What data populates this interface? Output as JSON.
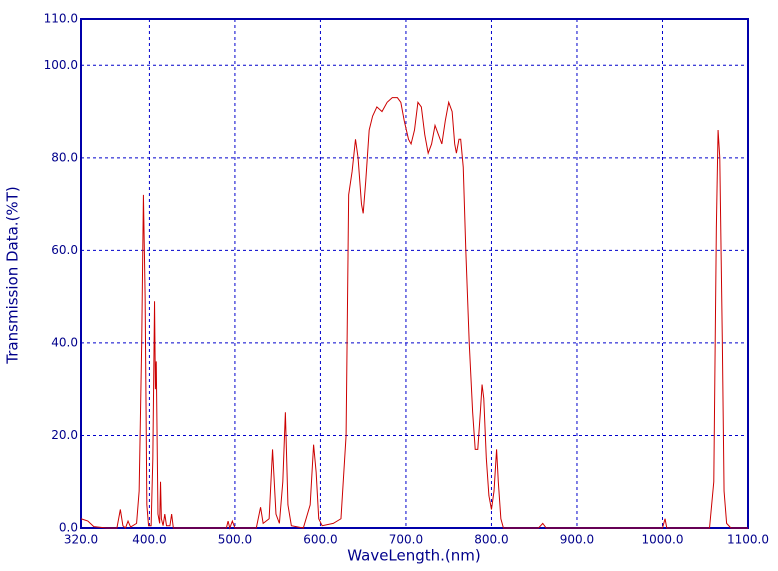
{
  "chart_data": {
    "type": "line",
    "xlabel": "WaveLength.(nm)",
    "ylabel": "Transmission Data.(%T)",
    "xlim": [
      320,
      1100
    ],
    "ylim": [
      0,
      110
    ],
    "xticks": [
      {
        "value": 320,
        "label": "320.0"
      },
      {
        "value": 400,
        "label": "400.0"
      },
      {
        "value": 500,
        "label": "500.0"
      },
      {
        "value": 600,
        "label": "600.0"
      },
      {
        "value": 700,
        "label": "700.0"
      },
      {
        "value": 800,
        "label": "800.0"
      },
      {
        "value": 900,
        "label": "900.0"
      },
      {
        "value": 1000,
        "label": "1000.0"
      },
      {
        "value": 1100,
        "label": "1100.0"
      }
    ],
    "yticks": [
      {
        "value": 0,
        "label": "0.0"
      },
      {
        "value": 20,
        "label": "20.0"
      },
      {
        "value": 40,
        "label": "40.0"
      },
      {
        "value": 60,
        "label": "60.0"
      },
      {
        "value": 80,
        "label": "80.0"
      },
      {
        "value": 100,
        "label": "100.0"
      },
      {
        "value": 110,
        "label": "110.0"
      }
    ],
    "grid": true,
    "series": [
      {
        "color": "#cc0000",
        "x": [
          320,
          328,
          335,
          350,
          362,
          366,
          369,
          372,
          375,
          378,
          385,
          388,
          391,
          393,
          395,
          397,
          399,
          402,
          404,
          406,
          407,
          408,
          410,
          412,
          413,
          414,
          416,
          418,
          420,
          424,
          426,
          428,
          440,
          490,
          492,
          494,
          497,
          500,
          525,
          530,
          533,
          540,
          544,
          548,
          552,
          556,
          559,
          562,
          566,
          580,
          588,
          592,
          595,
          598,
          602,
          615,
          624,
          630,
          633,
          637,
          641,
          644,
          648,
          650,
          653,
          657,
          661,
          666,
          672,
          678,
          684,
          690,
          694,
          698,
          703,
          706,
          710,
          714,
          718,
          722,
          726,
          730,
          734,
          738,
          742,
          746,
          750,
          754,
          757,
          759,
          762,
          764,
          767,
          770,
          774,
          778,
          781,
          784,
          787,
          789,
          791,
          794,
          797,
          800,
          803,
          806,
          808,
          811,
          814,
          855,
          860,
          864,
          1000,
          1003,
          1005,
          1055,
          1060,
          1063,
          1065,
          1067,
          1070,
          1072,
          1075,
          1080,
          1100
        ],
        "values": [
          2,
          1.5,
          0.3,
          0,
          0,
          4,
          0.5,
          0,
          1.5,
          0.2,
          1,
          8,
          40,
          72,
          50,
          5,
          0.5,
          0.5,
          15,
          49,
          30,
          36,
          3,
          1,
          10,
          2,
          0.5,
          3,
          0.5,
          0.5,
          3,
          0,
          0,
          0,
          1.5,
          0,
          1.5,
          0,
          0,
          4.5,
          1,
          2,
          17,
          3,
          1,
          10,
          25,
          5,
          0.5,
          0,
          5,
          18,
          12,
          2,
          0.5,
          1,
          2,
          20,
          72,
          77,
          84,
          80,
          70,
          68,
          75,
          86,
          89,
          91,
          90,
          92,
          93,
          93,
          92,
          88,
          84,
          83,
          86,
          92,
          91,
          85,
          81,
          83,
          87,
          85,
          83,
          88,
          92,
          90,
          83,
          81,
          84,
          84,
          78,
          60,
          40,
          25,
          17,
          17,
          25,
          31,
          28,
          15,
          7,
          4,
          8,
          17,
          10,
          2,
          0,
          0,
          1,
          0,
          0,
          2,
          0,
          0,
          10,
          65,
          86,
          80,
          40,
          8,
          1,
          0,
          0
        ]
      }
    ]
  }
}
